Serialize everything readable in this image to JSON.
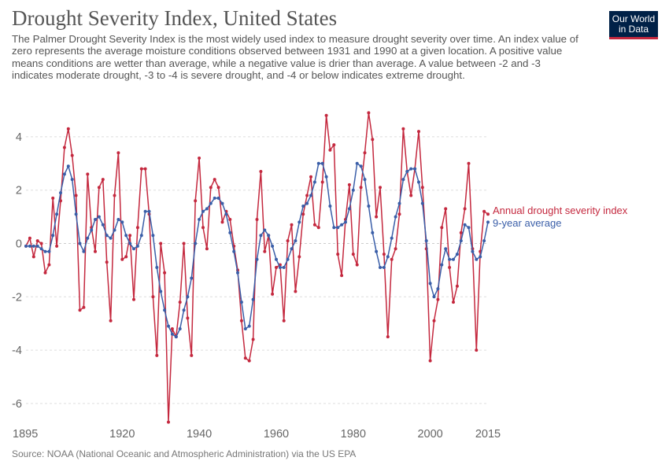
{
  "header": {
    "title": "Drought Severity Index, United States",
    "subtitle": "The Palmer Drought Severity Index is the most widely used index to measure drought severity over time. An index value of zero represents the average moisture conditions observed between 1931 and 1990 at a given location. A positive value means conditions are wetter than average, while a negative value is drier than average. A value between -2 and -3 indicates moderate drought, -3 to -4 is severe drought, and -4 or below indicates extreme drought.",
    "logo_line1": "Our World",
    "logo_line2": "in Data"
  },
  "footer": {
    "source": "Source: NOAA (National Oceanic and Atmospheric Administration) via the US EPA"
  },
  "colors": {
    "annual": "#c4283e",
    "average": "#3a5ea8",
    "logo_bg": "#002147"
  },
  "chart_data": {
    "type": "line",
    "title": "Drought Severity Index, United States",
    "xlabel": "",
    "ylabel": "",
    "xlim": [
      1895,
      2015
    ],
    "ylim": [
      -6.8,
      5
    ],
    "x_ticks": [
      "1895",
      "1920",
      "1940",
      "1960",
      "1980",
      "2000",
      "2015"
    ],
    "y_ticks": [
      "4",
      "2",
      "0",
      "-2",
      "-4",
      "-6"
    ],
    "grid": "horizontal dashed",
    "legend": "right, at line ends",
    "x": [
      1895,
      1896,
      1897,
      1898,
      1899,
      1900,
      1901,
      1902,
      1903,
      1904,
      1905,
      1906,
      1907,
      1908,
      1909,
      1910,
      1911,
      1912,
      1913,
      1914,
      1915,
      1916,
      1917,
      1918,
      1919,
      1920,
      1921,
      1922,
      1923,
      1924,
      1925,
      1926,
      1927,
      1928,
      1929,
      1930,
      1931,
      1932,
      1933,
      1934,
      1935,
      1936,
      1937,
      1938,
      1939,
      1940,
      1941,
      1942,
      1943,
      1944,
      1945,
      1946,
      1947,
      1948,
      1949,
      1950,
      1951,
      1952,
      1953,
      1954,
      1955,
      1956,
      1957,
      1958,
      1959,
      1960,
      1961,
      1962,
      1963,
      1964,
      1965,
      1966,
      1967,
      1968,
      1969,
      1970,
      1971,
      1972,
      1973,
      1974,
      1975,
      1976,
      1977,
      1978,
      1979,
      1980,
      1981,
      1982,
      1983,
      1984,
      1985,
      1986,
      1987,
      1988,
      1989,
      1990,
      1991,
      1992,
      1993,
      1994,
      1995,
      1996,
      1997,
      1998,
      1999,
      2000,
      2001,
      2002,
      2003,
      2004,
      2005,
      2006,
      2007,
      2008,
      2009,
      2010,
      2011,
      2012,
      2013,
      2014,
      2015
    ],
    "series": [
      {
        "name": "Annual drought severity index",
        "values": [
          -0.1,
          0.2,
          -0.5,
          0.1,
          0.0,
          -1.1,
          -0.8,
          1.7,
          -0.1,
          1.6,
          3.6,
          4.3,
          3.3,
          1.8,
          -2.5,
          -2.4,
          2.6,
          0.6,
          -0.3,
          2.1,
          2.4,
          -0.7,
          -2.9,
          1.8,
          3.4,
          -0.6,
          -0.5,
          0.3,
          -2.1,
          0.6,
          2.8,
          2.8,
          1.1,
          -2.0,
          -4.2,
          0.0,
          -1.1,
          -6.7,
          -3.2,
          -3.5,
          -2.2,
          0.0,
          -2.8,
          -4.2,
          1.6,
          3.2,
          0.6,
          -0.2,
          2.1,
          2.4,
          2.1,
          0.8,
          1.2,
          0.9,
          -0.1,
          -1.0,
          -2.9,
          -4.3,
          -4.4,
          -3.6,
          0.9,
          2.7,
          -0.3,
          0.3,
          -1.9,
          -0.9,
          -0.8,
          -2.9,
          0.1,
          0.7,
          -1.8,
          -0.5,
          1.1,
          1.8,
          2.5,
          0.7,
          0.6,
          2.3,
          4.8,
          3.5,
          3.7,
          -0.4,
          -1.2,
          0.9,
          2.2,
          -0.4,
          -0.8,
          2.1,
          3.4,
          4.9,
          3.9,
          1.0,
          2.1,
          -0.4,
          -3.5,
          -0.6,
          -0.2,
          1.1,
          4.3,
          2.7,
          1.8,
          2.8,
          4.2,
          2.1,
          -0.2,
          -4.4,
          -2.9,
          -2.1,
          0.6,
          1.3,
          -0.9,
          -2.2,
          -1.6,
          0.4,
          1.3,
          3.0,
          -0.2,
          -4.0,
          -0.3,
          1.2,
          1.1
        ]
      },
      {
        "name": "9-year average",
        "values": [
          -0.1,
          -0.1,
          -0.1,
          -0.1,
          -0.2,
          -0.3,
          -0.3,
          0.3,
          1.1,
          1.9,
          2.6,
          2.9,
          2.4,
          1.1,
          0.0,
          -0.3,
          0.2,
          0.5,
          0.9,
          1.0,
          0.7,
          0.3,
          0.2,
          0.5,
          0.9,
          0.8,
          0.3,
          0.0,
          -0.2,
          -0.1,
          0.3,
          1.2,
          1.2,
          0.3,
          -0.9,
          -1.8,
          -2.5,
          -3.1,
          -3.4,
          -3.5,
          -3.2,
          -2.5,
          -2.0,
          -1.3,
          0.0,
          0.9,
          1.2,
          1.3,
          1.5,
          1.7,
          1.7,
          1.5,
          1.1,
          0.4,
          -0.3,
          -1.1,
          -2.2,
          -3.2,
          -3.1,
          -2.1,
          -0.6,
          0.3,
          0.5,
          0.3,
          -0.1,
          -0.6,
          -0.9,
          -0.9,
          -0.6,
          -0.2,
          0.1,
          0.8,
          1.4,
          1.5,
          1.8,
          2.3,
          3.0,
          3.0,
          2.5,
          1.4,
          0.6,
          0.6,
          0.7,
          0.8,
          1.3,
          2.0,
          3.0,
          2.9,
          2.4,
          1.4,
          0.4,
          -0.3,
          -0.9,
          -0.9,
          -0.5,
          0.2,
          1.0,
          1.5,
          2.4,
          2.7,
          2.8,
          2.8,
          2.3,
          1.5,
          0.1,
          -1.5,
          -2.0,
          -1.7,
          -0.8,
          -0.2,
          -0.6,
          -0.6,
          -0.4,
          0.1,
          0.7,
          0.6,
          -0.3,
          -0.6,
          -0.5,
          0.1,
          0.8
        ]
      }
    ]
  }
}
